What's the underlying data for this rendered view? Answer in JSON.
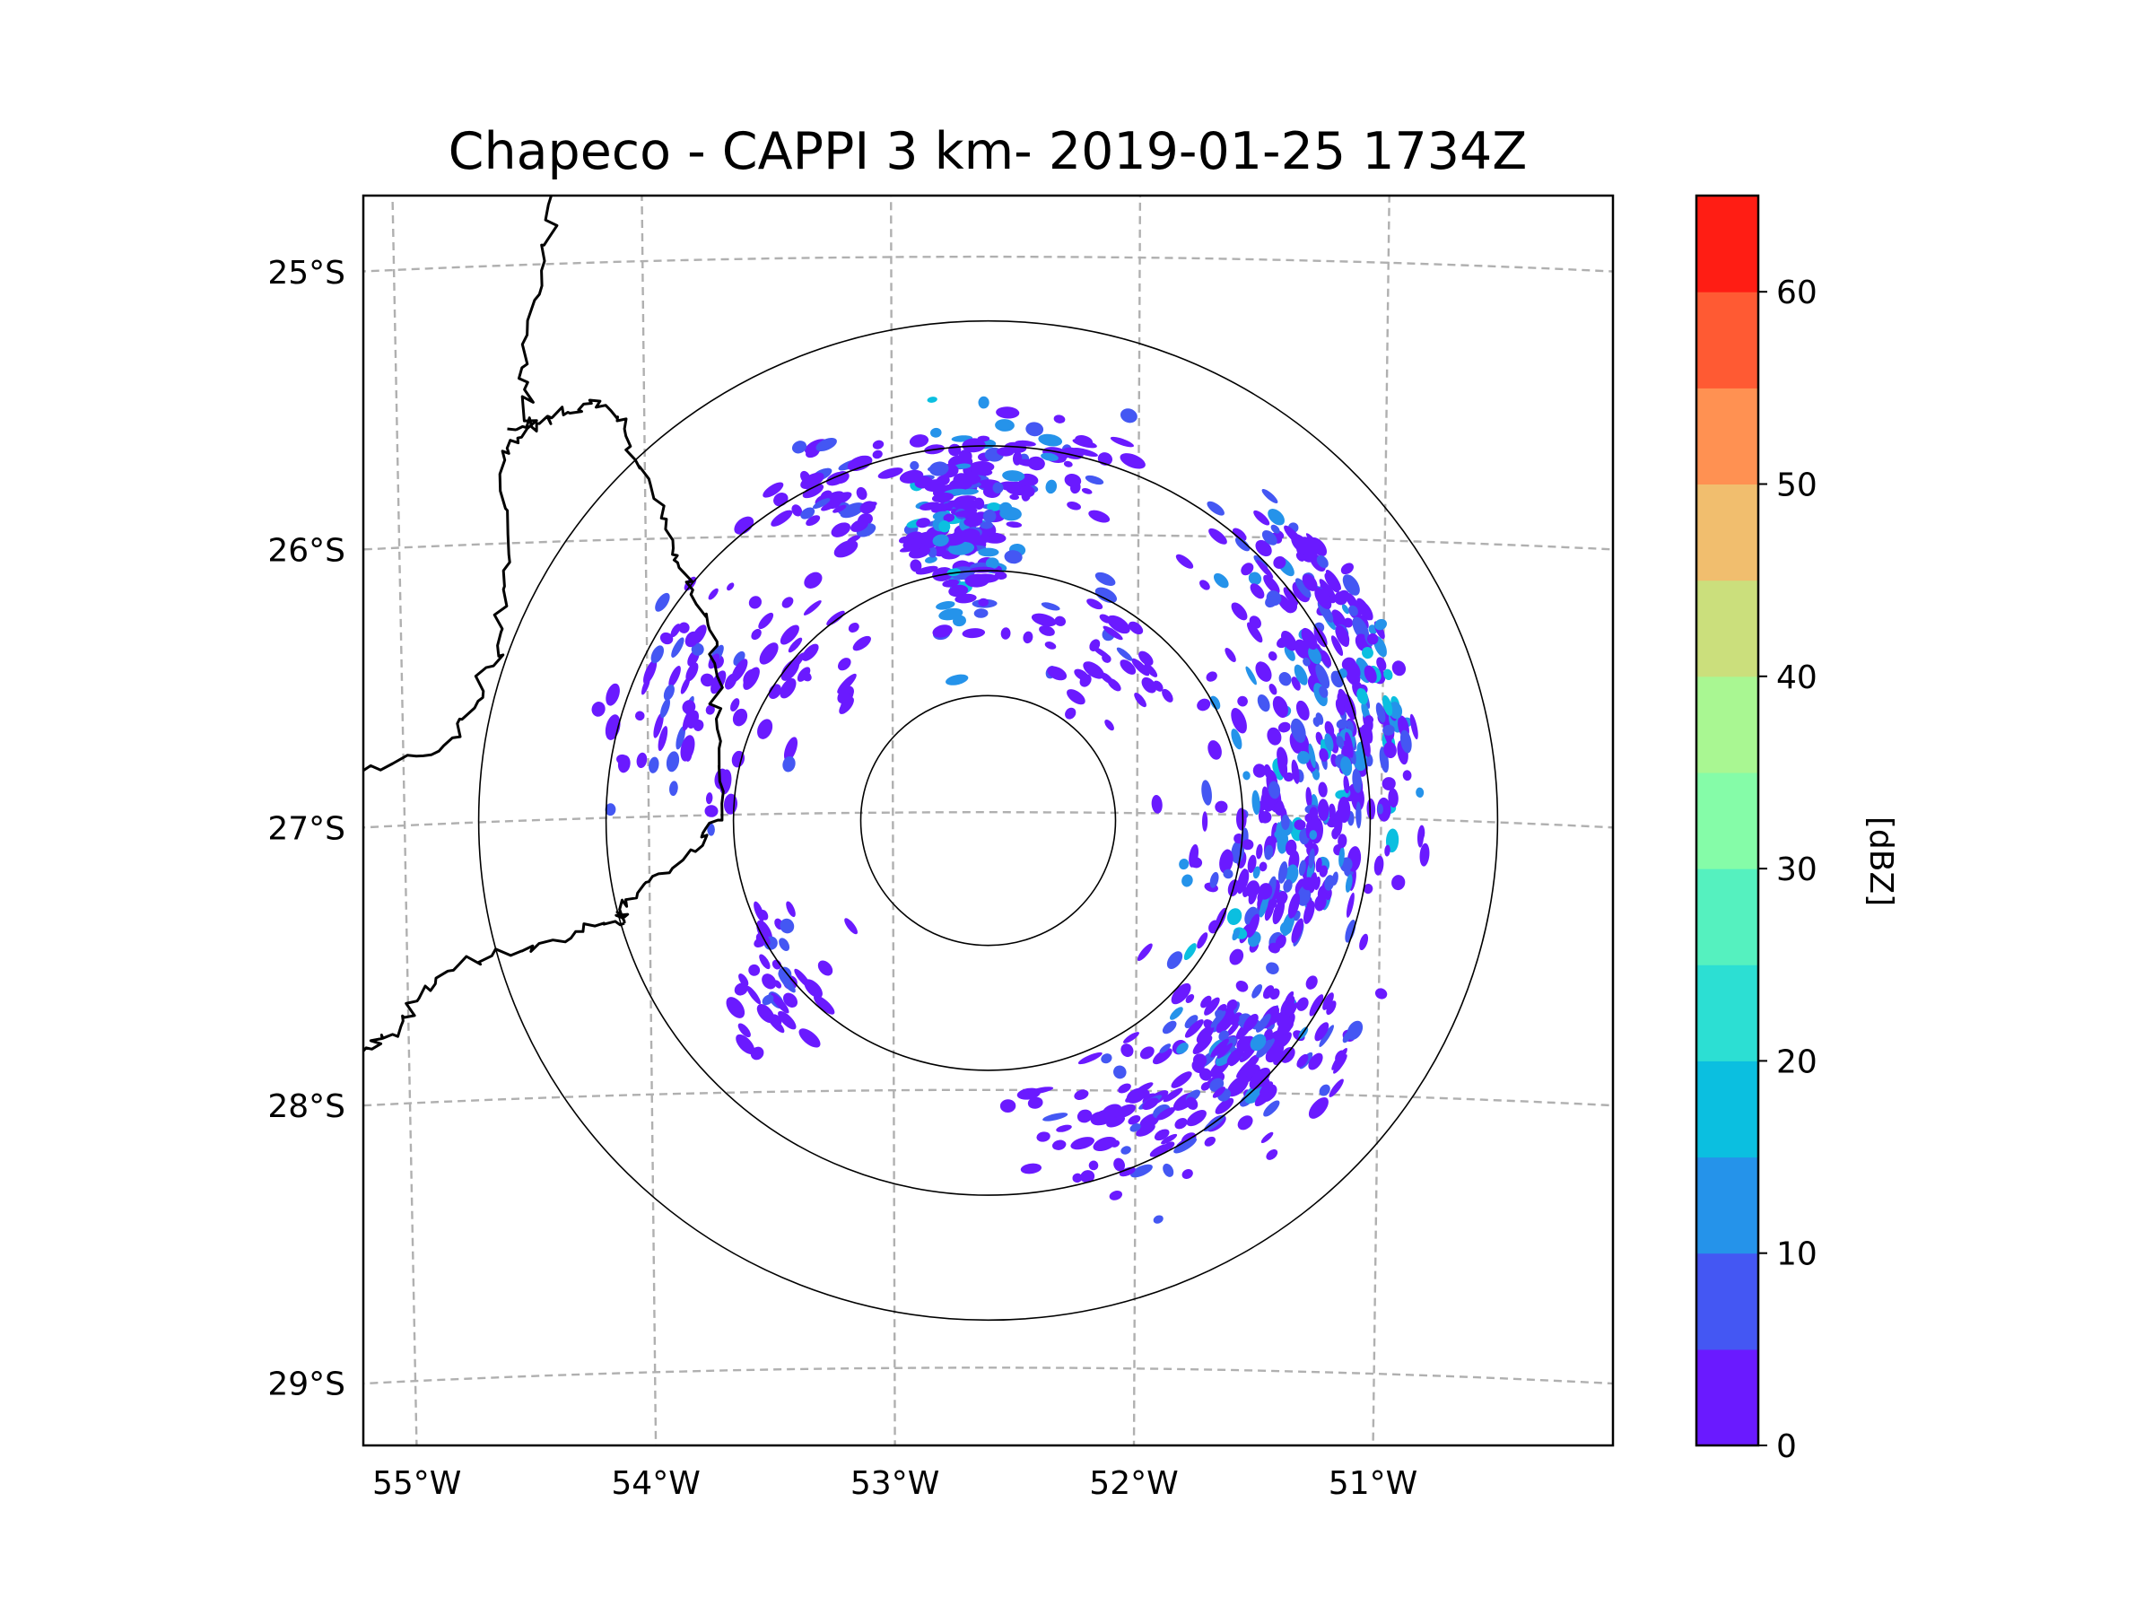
{
  "chart_data": {
    "type": "map-scatter",
    "title": "Chapeco - CAPPI 3 km- 2019-01-25 1734Z",
    "variable_label": "[dBZ]",
    "lon_range": [
      -55.17,
      -50.05
    ],
    "lat_range": [
      -29.28,
      -24.78
    ],
    "lon_ticks": [
      -55,
      -54,
      -53,
      -52,
      -51
    ],
    "lon_tick_labels": [
      "55°W",
      "54°W",
      "53°W",
      "52°W",
      "51°W"
    ],
    "lat_ticks": [
      -25,
      -26,
      -27,
      -28,
      -29
    ],
    "lat_tick_labels": [
      "25°S",
      "26°S",
      "27°S",
      "28°S",
      "29°S"
    ],
    "gridlines": true,
    "radar_center": {
      "lon": -52.61,
      "lat": -27.03
    },
    "range_rings_km": [
      50,
      100,
      150,
      200
    ],
    "colorbar": {
      "min": 0,
      "max": 65,
      "step": 5,
      "ticks": [
        0,
        10,
        20,
        30,
        40,
        50,
        60
      ],
      "tick_labels": [
        "0",
        "10",
        "20",
        "30",
        "40",
        "50",
        "60"
      ],
      "colors": [
        "#6a1aff",
        "#4457f3",
        "#2593ea",
        "#0bbfe0",
        "#2cdfd3",
        "#55f1bf",
        "#85fca8",
        "#a9f792",
        "#cbdf7c",
        "#f1be6e",
        "#ff9152",
        "#ff5a33",
        "#ff1d14"
      ]
    },
    "echo_clusters": [
      {
        "lon": -52.72,
        "lat": -25.95,
        "spread_lon": 0.18,
        "spread_lat": 0.32,
        "count": 170,
        "dbz_min": 0,
        "dbz_max": 18
      },
      {
        "lon": -52.35,
        "lat": -25.75,
        "spread_lon": 0.25,
        "spread_lat": 0.18,
        "count": 40,
        "dbz_min": 0,
        "dbz_max": 12
      },
      {
        "lon": -53.2,
        "lat": -25.85,
        "spread_lon": 0.3,
        "spread_lat": 0.2,
        "count": 45,
        "dbz_min": 0,
        "dbz_max": 10
      },
      {
        "lon": -51.3,
        "lat": -26.15,
        "spread_lon": 0.35,
        "spread_lat": 0.35,
        "count": 110,
        "dbz_min": 0,
        "dbz_max": 14
      },
      {
        "lon": -51.15,
        "lat": -26.7,
        "spread_lon": 0.35,
        "spread_lat": 0.4,
        "count": 190,
        "dbz_min": 0,
        "dbz_max": 18
      },
      {
        "lon": -51.4,
        "lat": -27.2,
        "spread_lon": 0.3,
        "spread_lat": 0.35,
        "count": 150,
        "dbz_min": 0,
        "dbz_max": 16
      },
      {
        "lon": -51.6,
        "lat": -27.85,
        "spread_lon": 0.45,
        "spread_lat": 0.22,
        "count": 140,
        "dbz_min": 0,
        "dbz_max": 12
      },
      {
        "lon": -52.0,
        "lat": -28.15,
        "spread_lon": 0.4,
        "spread_lat": 0.22,
        "count": 60,
        "dbz_min": 0,
        "dbz_max": 8
      },
      {
        "lon": -53.85,
        "lat": -26.6,
        "spread_lon": 0.3,
        "spread_lat": 0.45,
        "count": 60,
        "dbz_min": 0,
        "dbz_max": 10
      },
      {
        "lon": -53.5,
        "lat": -27.55,
        "spread_lon": 0.25,
        "spread_lat": 0.25,
        "count": 40,
        "dbz_min": 0,
        "dbz_max": 8
      },
      {
        "lon": -52.1,
        "lat": -26.45,
        "spread_lon": 0.3,
        "spread_lat": 0.2,
        "count": 40,
        "dbz_min": 0,
        "dbz_max": 6
      },
      {
        "lon": -53.4,
        "lat": -26.5,
        "spread_lon": 0.3,
        "spread_lat": 0.25,
        "count": 30,
        "dbz_min": 0,
        "dbz_max": 6
      }
    ],
    "borders": [
      [
        [
          -54.4,
          -24.78
        ],
        [
          -54.44,
          -25.05
        ],
        [
          -54.52,
          -25.4
        ],
        [
          -54.5,
          -25.62
        ],
        [
          -54.6,
          -25.7
        ],
        [
          -54.57,
          -26.1
        ],
        [
          -54.62,
          -26.4
        ],
        [
          -54.7,
          -26.6
        ],
        [
          -54.86,
          -26.78
        ],
        [
          -55.17,
          -26.85
        ]
      ],
      [
        [
          -54.58,
          -25.62
        ],
        [
          -54.46,
          -25.6
        ],
        [
          -54.35,
          -25.57
        ],
        [
          -54.2,
          -25.52
        ],
        [
          -54.1,
          -25.62
        ],
        [
          -54.0,
          -25.8
        ],
        [
          -53.9,
          -26.05
        ],
        [
          -53.82,
          -26.2
        ],
        [
          -53.72,
          -26.4
        ],
        [
          -53.72,
          -26.7
        ],
        [
          -53.7,
          -27.0
        ],
        [
          -53.78,
          -27.12
        ],
        [
          -54.0,
          -27.25
        ],
        [
          -54.12,
          -27.35
        ],
        [
          -54.1,
          -27.4
        ]
      ],
      [
        [
          -54.1,
          -27.4
        ],
        [
          -54.3,
          -27.43
        ],
        [
          -54.52,
          -27.5
        ],
        [
          -54.78,
          -27.55
        ],
        [
          -54.95,
          -27.68
        ],
        [
          -55.05,
          -27.8
        ],
        [
          -55.17,
          -27.86
        ]
      ]
    ]
  }
}
